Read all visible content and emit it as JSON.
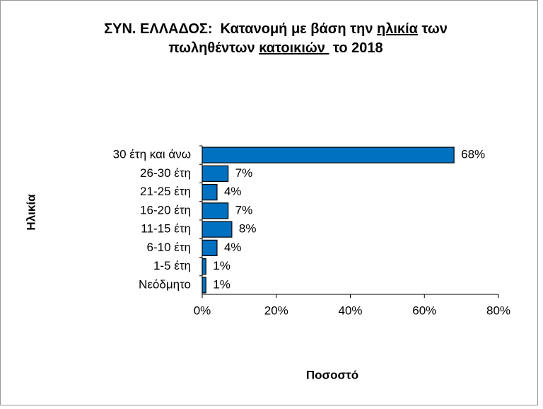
{
  "chart_data": {
    "type": "bar",
    "orientation": "horizontal",
    "title": [
      [
        "ΣΥΝ. ΕΛΛΑΔΟΣ:  Κατανομή με βάση την ",
        "ηλικία",
        " των"
      ],
      [
        "πωληθέντων ",
        "κατοικιών ",
        " το 2018"
      ]
    ],
    "x_label": "Ποσοστό",
    "y_label": "Ηλικία",
    "categories": [
      "30 έτη και άνω",
      "26-30 έτη",
      "21-25 έτη",
      "16-20 έτη",
      "11-15 έτη",
      "6-10 έτη",
      "1-5 έτη",
      "Νεόδμητο"
    ],
    "values": [
      68,
      7,
      4,
      7,
      8,
      4,
      1,
      1
    ],
    "value_labels": [
      "68%",
      "7%",
      "4%",
      "7%",
      "8%",
      "4%",
      "1%",
      "1%"
    ],
    "color": "#0070c0",
    "xlim": [
      0,
      80
    ],
    "xticks": [
      {
        "value": 0,
        "label": "0%"
      },
      {
        "value": 20,
        "label": "20%"
      },
      {
        "value": 40,
        "label": "40%"
      },
      {
        "value": 60,
        "label": "60%"
      },
      {
        "value": 80,
        "label": "80%"
      }
    ],
    "grid": false
  }
}
